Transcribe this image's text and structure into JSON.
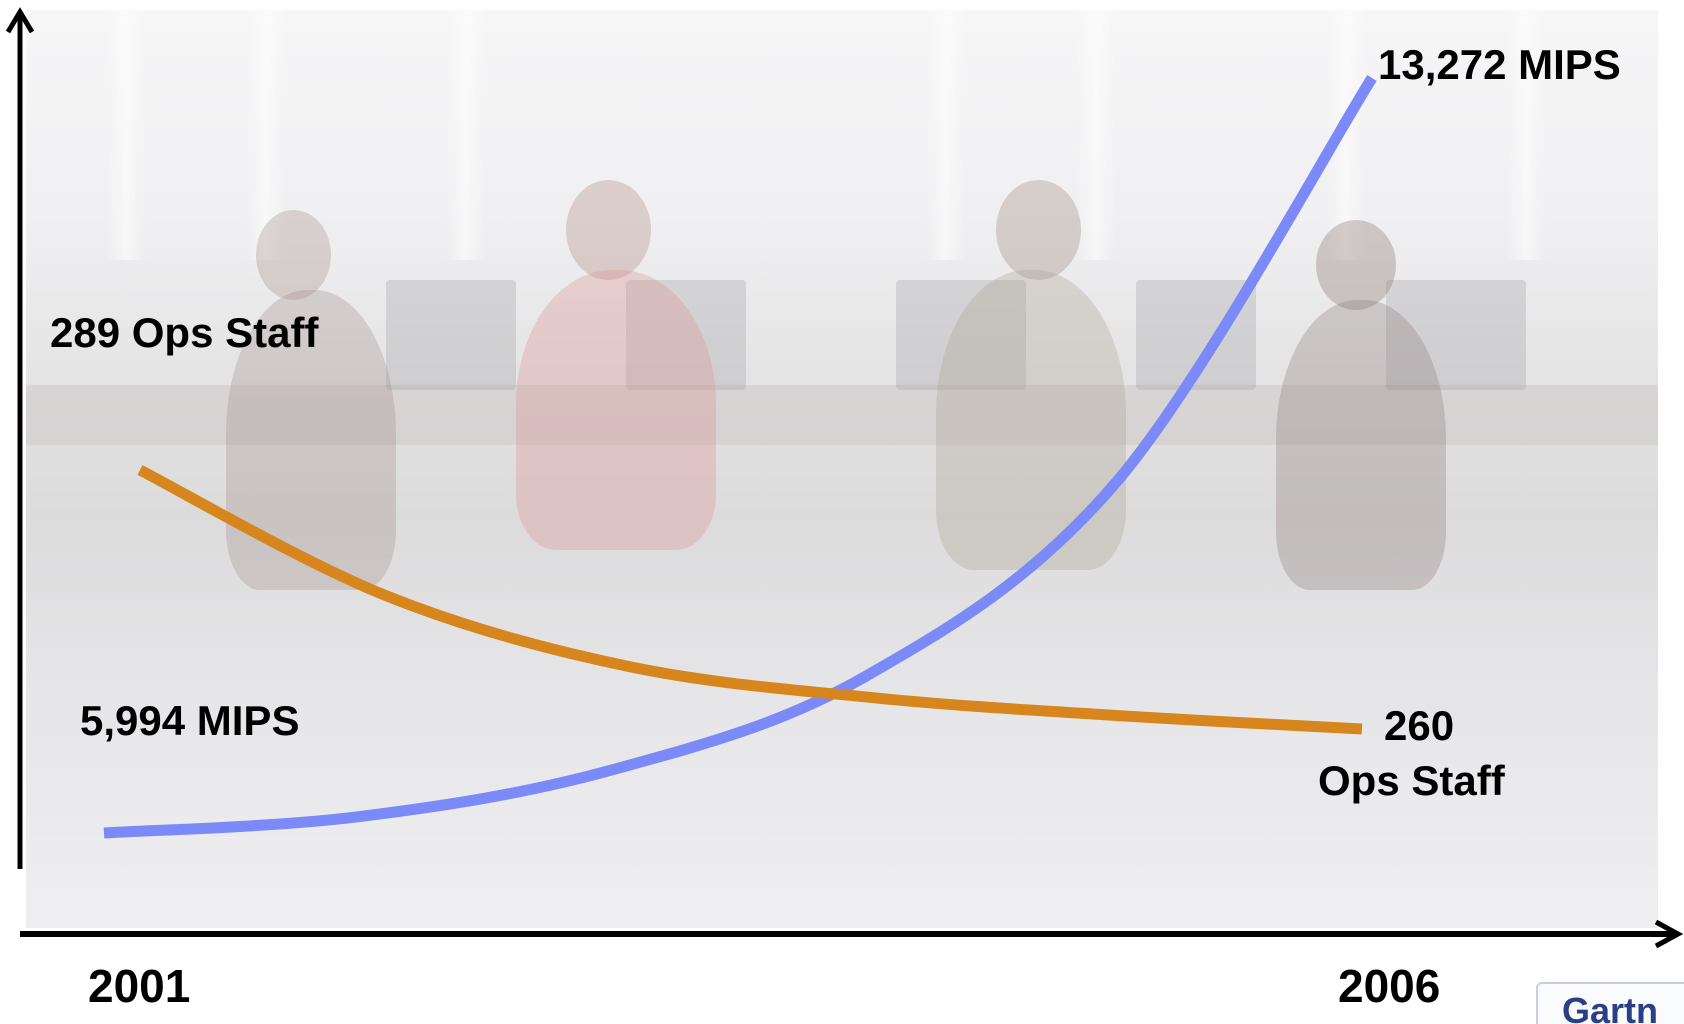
{
  "chart_data": {
    "type": "line",
    "x": [
      "2001",
      "2006"
    ],
    "xlabel": "",
    "ylabel": "",
    "tick_labels": {
      "start": "2001",
      "end": "2006"
    },
    "series": [
      {
        "name": "MIPS",
        "color": "#7b89f9",
        "points": [
          {
            "x": 2001,
            "y": 5994
          },
          {
            "x": 2002,
            "y": 6150
          },
          {
            "x": 2003,
            "y": 6600
          },
          {
            "x": 2004,
            "y": 7500
          },
          {
            "x": 2005,
            "y": 9400
          },
          {
            "x": 2006,
            "y": 13272
          }
        ],
        "start_label": "5,994 MIPS",
        "end_label": "13,272 MIPS"
      },
      {
        "name": "Ops Staff",
        "color": "#d6861c",
        "points": [
          {
            "x": 2001,
            "y": 289
          },
          {
            "x": 2002,
            "y": 275
          },
          {
            "x": 2003,
            "y": 267
          },
          {
            "x": 2004,
            "y": 263.5
          },
          {
            "x": 2005,
            "y": 261.5
          },
          {
            "x": 2006,
            "y": 260
          }
        ],
        "start_label": "289 Ops Staff",
        "end_label_lines": [
          "260",
          "Ops Staff"
        ]
      }
    ],
    "grid": false,
    "legend": "none"
  },
  "logo": {
    "text": "Gartn"
  }
}
